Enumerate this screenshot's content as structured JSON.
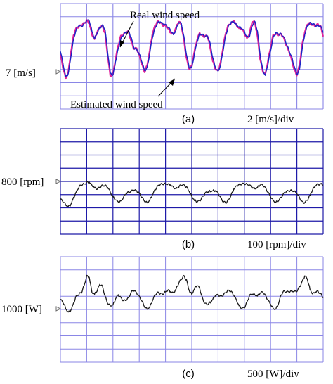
{
  "colors": {
    "grid_a": "#8a86e6",
    "grid_b": "#1e1aa8",
    "grid_c": "#8a86e6",
    "real_wind": "#e0209a",
    "estimated_wind": "#1a25c8",
    "trace": "#1a1a1a",
    "marker": "#6a6a6a"
  },
  "chart_data": [
    {
      "id": "a",
      "type": "line",
      "panel_label": "(a)",
      "scale_label": "2 [m/s]/div",
      "ref_label": "7 [m/s]",
      "ref_value": 7,
      "y_per_div": 2,
      "ylim": [
        -1,
        15
      ],
      "x_divisions": 10,
      "y_divisions": 8,
      "grid": true,
      "annotations": [
        "Real wind speed",
        "Estimated wind speed"
      ],
      "x": [
        0.0,
        0.1,
        0.2,
        0.3,
        0.4,
        0.5,
        0.6,
        0.7,
        0.8,
        0.9,
        1.0,
        1.1,
        1.2,
        1.3,
        1.4,
        1.5,
        1.6,
        1.7,
        1.8,
        1.9,
        2.0,
        2.1,
        2.2,
        2.3,
        2.4,
        2.5,
        2.6,
        2.7,
        2.8,
        2.9,
        3.0,
        3.1,
        3.2,
        3.3,
        3.4,
        3.5,
        3.6,
        3.7,
        3.8,
        3.9,
        4.0,
        4.1,
        4.2,
        4.3,
        4.4,
        4.5,
        4.6,
        4.7,
        4.8,
        4.9,
        5.0,
        5.1,
        5.2,
        5.3,
        5.4,
        5.5,
        5.6,
        5.7,
        5.8,
        5.9,
        6.0,
        6.1,
        6.2,
        6.3,
        6.4,
        6.5,
        6.6,
        6.7,
        6.8,
        6.9,
        7.0,
        7.1,
        7.2,
        7.3,
        7.4,
        7.5,
        7.6,
        7.7,
        7.8,
        7.9,
        8.0,
        8.1,
        8.2,
        8.3,
        8.4,
        8.5,
        8.6,
        8.7,
        8.8,
        8.9,
        9.0,
        9.1,
        9.2,
        9.3,
        9.4,
        9.5,
        9.6,
        9.7,
        9.8,
        9.9,
        10.0
      ],
      "series": [
        {
          "name": "Real wind speed",
          "values": [
            7.3,
            5.3,
            3.7,
            4.6,
            7.5,
            10.1,
            11.3,
            11.5,
            11.7,
            12.0,
            12.4,
            12.0,
            10.3,
            9.7,
            10.7,
            11.4,
            11.6,
            10.5,
            7.1,
            4.0,
            4.3,
            6.6,
            8.6,
            10.1,
            10.3,
            10.7,
            10.7,
            9.2,
            8.1,
            8.2,
            7.2,
            5.8,
            4.6,
            5.6,
            7.9,
            10.3,
            11.6,
            12.3,
            12.1,
            11.7,
            11.7,
            11.2,
            10.5,
            10.3,
            11.4,
            12.3,
            11.8,
            9.5,
            6.6,
            5.0,
            5.5,
            7.8,
            9.5,
            10.5,
            10.1,
            10.0,
            10.1,
            8.4,
            6.3,
            5.0,
            4.7,
            6.1,
            8.6,
            10.7,
            11.8,
            12.0,
            12.3,
            11.7,
            11.3,
            11.2,
            10.5,
            9.7,
            10.5,
            12.2,
            12.2,
            10.1,
            6.6,
            4.7,
            4.3,
            6.3,
            8.3,
            10.3,
            10.4,
            10.2,
            10.4,
            9.8,
            8.6,
            7.7,
            6.5,
            5.0,
            4.1,
            5.6,
            8.7,
            10.6,
            11.9,
            12.0,
            11.8,
            11.6,
            11.8,
            11.6,
            10.1
          ]
        },
        {
          "name": "Estimated wind speed",
          "values": [
            7.8,
            5.9,
            3.9,
            4.3,
            6.9,
            9.6,
            11.1,
            11.7,
            11.5,
            11.9,
            12.4,
            12.4,
            10.9,
            9.7,
            10.5,
            11.3,
            11.7,
            11.1,
            7.6,
            4.5,
            4.1,
            6.1,
            8.1,
            9.7,
            10.3,
            10.6,
            10.8,
            9.7,
            8.2,
            8.1,
            7.4,
            6.2,
            4.8,
            5.2,
            7.4,
            9.8,
            11.3,
            12.1,
            12.2,
            11.9,
            11.8,
            11.4,
            10.9,
            10.3,
            11.0,
            12.1,
            12.0,
            10.0,
            7.2,
            5.3,
            5.3,
            7.3,
            9.1,
            10.4,
            10.3,
            10.0,
            10.1,
            9.0,
            6.7,
            5.2,
            4.7,
            5.7,
            8.1,
            10.3,
            11.6,
            12.1,
            12.2,
            11.8,
            11.5,
            11.2,
            10.8,
            9.9,
            10.0,
            11.7,
            12.4,
            10.8,
            7.2,
            4.9,
            4.1,
            5.9,
            7.9,
            9.9,
            10.5,
            10.3,
            10.4,
            10.0,
            8.9,
            7.9,
            6.9,
            5.4,
            4.2,
            5.0,
            8.1,
            10.3,
            11.6,
            12.1,
            11.9,
            11.7,
            11.6,
            11.6,
            10.6
          ]
        }
      ]
    },
    {
      "id": "b",
      "type": "line",
      "panel_label": "(b)",
      "scale_label": "100 [rpm]/div",
      "ref_label": "800 [rpm]",
      "ref_value": 800,
      "y_per_div": 100,
      "ylim": [
        530,
        1330
      ],
      "x_divisions": 10,
      "y_divisions": 8,
      "grid": true,
      "x": [
        0.0,
        0.1,
        0.2,
        0.3,
        0.4,
        0.5,
        0.6,
        0.7,
        0.8,
        0.9,
        1.0,
        1.1,
        1.2,
        1.3,
        1.4,
        1.5,
        1.6,
        1.7,
        1.8,
        1.9,
        2.0,
        2.1,
        2.2,
        2.3,
        2.4,
        2.5,
        2.6,
        2.7,
        2.8,
        2.9,
        3.0,
        3.1,
        3.2,
        3.3,
        3.4,
        3.5,
        3.6,
        3.7,
        3.8,
        3.9,
        4.0,
        4.1,
        4.2,
        4.3,
        4.4,
        4.5,
        4.6,
        4.7,
        4.8,
        4.9,
        5.0,
        5.1,
        5.2,
        5.3,
        5.4,
        5.5,
        5.6,
        5.7,
        5.8,
        5.9,
        6.0,
        6.1,
        6.2,
        6.3,
        6.4,
        6.5,
        6.6,
        6.7,
        6.8,
        6.9,
        7.0,
        7.1,
        7.2,
        7.3,
        7.4,
        7.5,
        7.6,
        7.7,
        7.8,
        7.9,
        8.0,
        8.1,
        8.2,
        8.3,
        8.4,
        8.5,
        8.6,
        8.7,
        8.8,
        8.9,
        9.0,
        9.1,
        9.2,
        9.3,
        9.4,
        9.5,
        9.6,
        9.7,
        9.8,
        9.9,
        10.0
      ],
      "series": [
        {
          "name": "",
          "values": [
            795,
            780,
            755,
            740,
            752,
            805,
            850,
            888,
            905,
            910,
            922,
            920,
            902,
            884,
            874,
            885,
            900,
            900,
            885,
            850,
            815,
            790,
            773,
            780,
            810,
            838,
            850,
            858,
            864,
            858,
            842,
            810,
            780,
            770,
            790,
            826,
            866,
            894,
            908,
            910,
            912,
            910,
            900,
            884,
            876,
            888,
            905,
            904,
            886,
            852,
            818,
            791,
            776,
            782,
            810,
            838,
            852,
            858,
            862,
            857,
            840,
            807,
            776,
            768,
            792,
            828,
            868,
            895,
            908,
            910,
            912,
            910,
            900,
            884,
            875,
            887,
            904,
            902,
            882,
            848,
            812,
            787,
            772,
            783,
            810,
            839,
            853,
            858,
            862,
            857,
            838,
            806,
            775,
            768,
            790,
            828,
            868,
            895,
            908,
            910,
            908
          ]
        }
      ]
    },
    {
      "id": "c",
      "type": "line",
      "panel_label": "(c)",
      "scale_label": "500 [W]/div",
      "ref_label": "1000 [W]",
      "ref_value": 1000,
      "y_per_div": 500,
      "ylim": [
        -1500,
        2500
      ],
      "x_divisions": 10,
      "y_divisions": 8,
      "grid": true,
      "x": [
        0.0,
        0.1,
        0.2,
        0.3,
        0.4,
        0.5,
        0.6,
        0.7,
        0.8,
        0.9,
        1.0,
        1.1,
        1.2,
        1.3,
        1.4,
        1.5,
        1.6,
        1.7,
        1.8,
        1.9,
        2.0,
        2.1,
        2.2,
        2.3,
        2.4,
        2.5,
        2.6,
        2.7,
        2.8,
        2.9,
        3.0,
        3.1,
        3.2,
        3.3,
        3.4,
        3.5,
        3.6,
        3.7,
        3.8,
        3.9,
        4.0,
        4.1,
        4.2,
        4.3,
        4.4,
        4.5,
        4.6,
        4.7,
        4.8,
        4.9,
        5.0,
        5.1,
        5.2,
        5.3,
        5.4,
        5.5,
        5.6,
        5.7,
        5.8,
        5.9,
        6.0,
        6.1,
        6.2,
        6.3,
        6.4,
        6.5,
        6.6,
        6.7,
        6.8,
        6.9,
        7.0,
        7.1,
        7.2,
        7.3,
        7.4,
        7.5,
        7.6,
        7.7,
        7.8,
        7.9,
        8.0,
        8.1,
        8.2,
        8.3,
        8.4,
        8.5,
        8.6,
        8.7,
        8.8,
        8.9,
        9.0,
        9.1,
        9.2,
        9.3,
        9.4,
        9.5,
        9.6,
        9.7,
        9.8,
        9.9,
        10.0
      ],
      "series": [
        {
          "name": "",
          "values": [
            870,
            780,
            550,
            400,
            450,
            720,
            1020,
            1080,
            1140,
            1400,
            1770,
            1700,
            1150,
            1100,
            1220,
            1450,
            1380,
            1000,
            720,
            650,
            680,
            900,
            1050,
            950,
            830,
            850,
            950,
            1180,
            1220,
            1120,
            1000,
            820,
            600,
            520,
            600,
            820,
            1050,
            1150,
            1100,
            1080,
            1180,
            1240,
            1150,
            1120,
            1280,
            1500,
            1650,
            1780,
            1600,
            1200,
            1080,
            1300,
            1420,
            1300,
            930,
            720,
            690,
            780,
            900,
            1020,
            1050,
            1000,
            1050,
            1150,
            1240,
            1180,
            1020,
            850,
            650,
            540,
            560,
            780,
            1030,
            1080,
            1060,
            1020,
            1120,
            1160,
            1040,
            850,
            690,
            540,
            520,
            720,
            1050,
            1200,
            1160,
            1170,
            1200,
            1200,
            1180,
            1350,
            1550,
            1770,
            1650,
            1270,
            1090,
            1150,
            1180,
            1100,
            960
          ]
        }
      ]
    }
  ]
}
